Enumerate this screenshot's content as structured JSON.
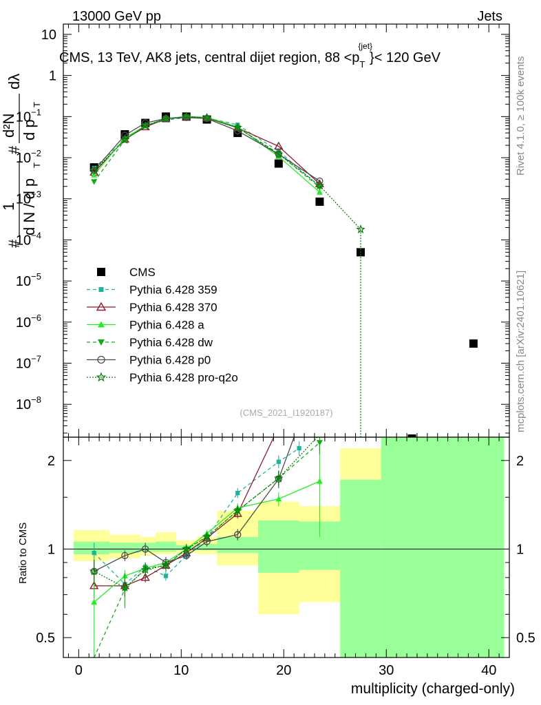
{
  "header": {
    "left": "13000 GeV pp",
    "right": "Jets"
  },
  "side_labels": {
    "rivet": "Rivet 4.1.0, ≥ 100k events",
    "mcplots": "mcplots.cern.ch [arXiv:2401.10621]"
  },
  "watermark": "(CMS_2021_I1920187)",
  "colors": {
    "CMS": "#000000",
    "Pythia 6.428 359": "#1fb39a",
    "Pythia 6.428 370": "#8b1a2a",
    "Pythia 6.428 a": "#22ee22",
    "Pythia 6.428 dw": "#11aa11",
    "Pythia 6.428 p0": "#4a4a4a",
    "Pythia 6.428 pro-q2o": "#0d7a0d",
    "band_yellow": "#ffff99",
    "band_green": "#99ff99"
  },
  "chart_data": [
    {
      "type": "scatter",
      "panel": "main",
      "title": "CMS, 13 TeV, AK8 jets, central dijet region, 88 <p",
      "title_sub": "T",
      "title_sup": "{jet}",
      "title_tail": "}< 120 GeV",
      "xlabel": "multiplicity (charged-only)",
      "ylabel_lead": "#",
      "ylabel_frac_num_top": "1",
      "ylabel_frac_den": "d N / d p",
      "ylabel_frac_den_sub": "T",
      "ylabel_second": "#",
      "ylabel_second_frac_top": "d²N",
      "ylabel_second_frac_bottom": "d p",
      "ylabel_second_frac_bottom_sub": "T",
      "ylabel_tail": "dλ",
      "xlim": [
        -1.5,
        42
      ],
      "ylim_log10": [
        -8.8,
        1.25
      ],
      "xticks": [
        0,
        10,
        20,
        30,
        40
      ],
      "yticks": [
        {
          "exp": 1,
          "label": "10"
        },
        {
          "exp": 0,
          "label": "1"
        },
        {
          "exp": -1,
          "label": "10",
          "sup": "−1"
        },
        {
          "exp": -2,
          "label": "10",
          "sup": "−2"
        },
        {
          "exp": -3,
          "label": "10",
          "sup": "−3"
        },
        {
          "exp": -4,
          "label": "10",
          "sup": "−4"
        },
        {
          "exp": -5,
          "label": "10",
          "sup": "−5"
        },
        {
          "exp": -6,
          "label": "10",
          "sup": "−6"
        },
        {
          "exp": -7,
          "label": "10",
          "sup": "−7"
        },
        {
          "exp": -8,
          "label": "10",
          "sup": "−8"
        }
      ],
      "series": [
        {
          "name": "CMS",
          "marker": "square",
          "line": "none",
          "x": [
            1.5,
            4.5,
            6.5,
            8.5,
            10.5,
            12.5,
            15.5,
            19.5,
            23.5,
            27.5,
            32.5,
            38.5
          ],
          "y": [
            0.0058,
            0.037,
            0.07,
            0.1,
            0.1,
            0.085,
            0.04,
            0.0072,
            0.00085,
            5e-05,
            3e-10,
            3e-07
          ]
        },
        {
          "name": "Pythia 6.428 359",
          "marker": "square-small",
          "line": "dashed",
          "x": [
            1.5,
            4.5,
            6.5,
            8.5,
            10.5,
            12.5,
            15.5,
            19.5,
            23.5
          ],
          "y": [
            0.0056,
            0.028,
            0.061,
            0.082,
            0.095,
            0.093,
            0.063,
            0.0144,
            0.002
          ]
        },
        {
          "name": "Pythia 6.428 370",
          "marker": "triangle-open",
          "line": "solid",
          "x": [
            1.5,
            4.5,
            6.5,
            8.5,
            10.5,
            12.5,
            15.5,
            19.5,
            23.5
          ],
          "y": [
            0.0044,
            0.028,
            0.056,
            0.088,
            0.098,
            0.093,
            0.053,
            0.019,
            0.0023
          ]
        },
        {
          "name": "Pythia 6.428 a",
          "marker": "triangle-up",
          "line": "solid",
          "x": [
            1.5,
            4.5,
            6.5,
            8.5,
            10.5,
            12.5,
            15.5,
            19.5,
            23.5
          ],
          "y": [
            0.0038,
            0.03,
            0.06,
            0.09,
            0.1,
            0.096,
            0.056,
            0.0107,
            0.00145
          ]
        },
        {
          "name": "Pythia 6.428 dw",
          "marker": "triangle-down",
          "line": "dashed",
          "x": [
            1.5,
            4.5,
            6.5,
            8.5,
            10.5,
            12.5,
            15.5,
            19.5,
            23.5
          ],
          "y": [
            0.0026,
            0.027,
            0.06,
            0.088,
            0.1,
            0.093,
            0.054,
            0.0126,
            0.0019
          ]
        },
        {
          "name": "Pythia 6.428 p0",
          "marker": "circle-open",
          "line": "solid",
          "x": [
            1.5,
            4.5,
            6.5,
            8.5,
            10.5,
            12.5,
            15.5,
            19.5,
            23.5
          ],
          "y": [
            0.0049,
            0.035,
            0.07,
            0.09,
            0.095,
            0.09,
            0.045,
            0.0122,
            0.0027
          ]
        },
        {
          "name": "Pythia 6.428 pro-q2o",
          "marker": "star-open",
          "line": "dotted",
          "x": [
            1.5,
            4.5,
            6.5,
            8.5,
            10.5,
            12.5,
            15.5,
            19.5,
            23.5,
            27.5
          ],
          "y": [
            0.0049,
            0.027,
            0.06,
            0.088,
            0.1,
            0.093,
            0.054,
            0.0122,
            0.0021,
            0.00018
          ]
        }
      ],
      "legend": [
        "CMS",
        "Pythia 6.428 359",
        "Pythia 6.428 370",
        "Pythia 6.428 a",
        "Pythia 6.428 dw",
        "Pythia 6.428 p0",
        "Pythia 6.428 pro-q2o"
      ],
      "legend_position": "left, lower half"
    },
    {
      "type": "line",
      "panel": "ratio",
      "ylabel": "Ratio to CMS",
      "xlim": [
        -1.5,
        42
      ],
      "ylim_log10": [
        -0.3686,
        0.3802
      ],
      "yticks": [
        {
          "value": 0.5,
          "label": "0.5"
        },
        {
          "value": 1,
          "label": "1"
        },
        {
          "value": 2,
          "label": "2"
        }
      ],
      "xticks": [
        0,
        10,
        20,
        30,
        40
      ],
      "bands": [
        {
          "x0": -0.5,
          "x1": 3.0,
          "yellow": [
            0.91,
            1.16
          ],
          "green": [
            0.96,
            1.06
          ]
        },
        {
          "x0": 3.0,
          "x1": 6.0,
          "yellow": [
            0.93,
            1.12
          ],
          "green": [
            0.97,
            1.05
          ]
        },
        {
          "x0": 6.0,
          "x1": 7.5,
          "yellow": [
            0.95,
            1.1
          ],
          "green": [
            0.98,
            1.05
          ]
        },
        {
          "x0": 7.5,
          "x1": 9.5,
          "yellow": [
            0.96,
            1.14
          ],
          "green": [
            0.98,
            1.06
          ]
        },
        {
          "x0": 9.5,
          "x1": 11.5,
          "yellow": [
            0.97,
            1.07
          ],
          "green": [
            0.99,
            1.03
          ]
        },
        {
          "x0": 11.5,
          "x1": 13.5,
          "yellow": [
            0.96,
            1.1
          ],
          "green": [
            0.99,
            1.04
          ]
        },
        {
          "x0": 13.5,
          "x1": 17.5,
          "yellow": [
            0.88,
            1.35
          ],
          "green": [
            0.97,
            1.1
          ]
        },
        {
          "x0": 17.5,
          "x1": 21.5,
          "yellow": [
            0.6,
            1.45
          ],
          "green": [
            0.83,
            1.25
          ]
        },
        {
          "x0": 21.5,
          "x1": 25.5,
          "yellow": [
            0.66,
            1.4
          ],
          "green": [
            0.85,
            1.24
          ]
        },
        {
          "x0": 25.5,
          "x1": 29.5,
          "yellow": [
            0.2,
            2.2
          ],
          "green": [
            0.2,
            1.72
          ]
        },
        {
          "x0": 29.5,
          "x1": 41.5,
          "yellow": [
            0.2,
            3.0
          ],
          "green": [
            0.2,
            3.0
          ]
        }
      ],
      "series": [
        {
          "name": "Pythia 6.428 359",
          "x": [
            1.5,
            4.5,
            6.5,
            8.5,
            10.5,
            12.5,
            15.5,
            19.5,
            21.5
          ],
          "y": [
            0.97,
            0.76,
            0.87,
            0.81,
            0.95,
            1.09,
            1.55,
            1.98,
            2.2
          ],
          "err": [
            0.08,
            0.04,
            0.03,
            0.03,
            0.02,
            0.03,
            0.06,
            0.1,
            0.12
          ]
        },
        {
          "name": "Pythia 6.428 370",
          "x": [
            1.5,
            4.5,
            6.5,
            8.5,
            10.5,
            12.5,
            15.5,
            19.5,
            21.3
          ],
          "y": [
            0.75,
            0.75,
            0.8,
            0.88,
            0.97,
            1.09,
            1.32,
            2.6,
            2.4
          ],
          "err": [
            0.07,
            0.03,
            0.03,
            0.02,
            0.02,
            0.03,
            0.05,
            0.15,
            0.15
          ]
        },
        {
          "name": "Pythia 6.428 a",
          "x": [
            1.5,
            4.5,
            6.5,
            8.5,
            10.5,
            12.5,
            15.5,
            19.5,
            23.5
          ],
          "y": [
            0.66,
            0.81,
            0.86,
            0.9,
            1.0,
            1.13,
            1.38,
            1.48,
            1.7
          ],
          "err": [
            0.3,
            0.04,
            0.03,
            0.03,
            0.02,
            0.03,
            0.05,
            0.08,
            0.6
          ]
        },
        {
          "name": "Pythia 6.428 dw",
          "x": [
            1.5,
            4.5,
            6.5,
            8.5,
            10.5,
            12.5,
            15.5,
            19.5,
            23.5
          ],
          "y": [
            0.36,
            0.73,
            0.86,
            0.88,
            1.0,
            1.1,
            1.35,
            1.74,
            2.3
          ],
          "err": [
            0.1,
            0.1,
            0.03,
            0.03,
            0.02,
            0.03,
            0.05,
            0.1,
            0.2
          ]
        },
        {
          "name": "Pythia 6.428 p0",
          "x": [
            1.5,
            4.5,
            6.5,
            8.5,
            10.5,
            12.5,
            15.5,
            19.5,
            21.0
          ],
          "y": [
            0.84,
            0.95,
            1.0,
            0.9,
            0.95,
            1.06,
            1.12,
            1.73,
            2.4
          ],
          "err": [
            0.06,
            0.04,
            0.05,
            0.04,
            0.03,
            0.04,
            0.05,
            0.12,
            0.1
          ]
        },
        {
          "name": "Pythia 6.428 pro-q2o",
          "x": [
            1.5,
            4.5,
            6.5,
            8.5,
            10.5,
            12.5,
            15.5,
            19.5,
            23.5
          ],
          "y": [
            0.84,
            0.74,
            0.85,
            0.88,
            1.0,
            1.1,
            1.35,
            1.74,
            2.45
          ],
          "err": [
            0.08,
            0.05,
            0.05,
            0.04,
            0.04,
            0.04,
            0.06,
            0.1,
            0.15
          ]
        }
      ]
    }
  ]
}
